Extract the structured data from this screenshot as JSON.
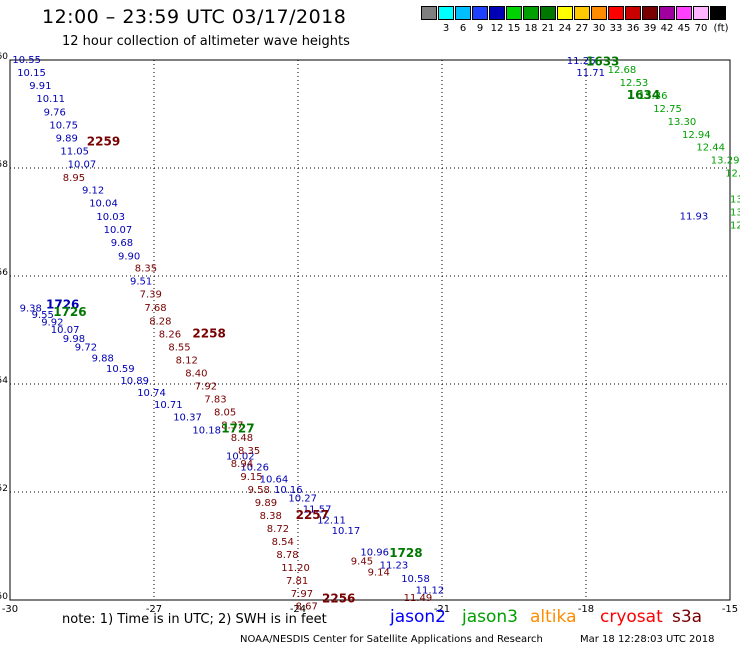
{
  "header": {
    "title": "12:00 – 23:59 UTC 03/17/2018",
    "subtitle": "12 hour collection of altimeter wave heights"
  },
  "legend": {
    "unit": "(ft)",
    "bins": [
      {
        "label": "",
        "color": "#7f7f7f"
      },
      {
        "label": "3",
        "color": "#00ffff"
      },
      {
        "label": "6",
        "color": "#00bfff"
      },
      {
        "label": "9",
        "color": "#1e40ff"
      },
      {
        "label": "12",
        "color": "#0000b4"
      },
      {
        "label": "15",
        "color": "#00d400"
      },
      {
        "label": "18",
        "color": "#00a000"
      },
      {
        "label": "21",
        "color": "#007800"
      },
      {
        "label": "24",
        "color": "#ffff00"
      },
      {
        "label": "27",
        "color": "#ffc800"
      },
      {
        "label": "30",
        "color": "#ff8c00"
      },
      {
        "label": "33",
        "color": "#ff0000"
      },
      {
        "label": "36",
        "color": "#c80000"
      },
      {
        "label": "39",
        "color": "#780000"
      },
      {
        "label": "42",
        "color": "#a000a0"
      },
      {
        "label": "45",
        "color": "#ff40ff"
      },
      {
        "label": "70",
        "color": "#ffb4ff"
      },
      {
        "label": "",
        "color": "#000000"
      }
    ]
  },
  "axes": {
    "x_ticks": [
      {
        "v": -30,
        "t": "-30"
      },
      {
        "v": -27,
        "t": "-27"
      },
      {
        "v": -24,
        "t": "-24"
      },
      {
        "v": -21,
        "t": "-21"
      },
      {
        "v": -18,
        "t": "-18"
      },
      {
        "v": -15,
        "t": "-15"
      }
    ],
    "y_ticks": [
      {
        "v": 50,
        "t": "50"
      },
      {
        "v": 52,
        "t": "52"
      },
      {
        "v": 54,
        "t": "54"
      },
      {
        "v": 56,
        "t": "56"
      },
      {
        "v": 58,
        "t": "58"
      },
      {
        "v": 60,
        "t": "60"
      }
    ],
    "xlim": [
      -30,
      -15
    ],
    "ylim": [
      50,
      60
    ]
  },
  "chart_data": {
    "type": "scatter",
    "series": [
      {
        "name": "jason2",
        "color": "#0000b4",
        "points": [
          {
            "lon": -29.95,
            "lat": 59.94,
            "t": "10.55"
          },
          {
            "lon": -29.85,
            "lat": 59.7,
            "t": "10.15"
          },
          {
            "lon": -29.6,
            "lat": 59.46,
            "t": "9.91"
          },
          {
            "lon": -29.45,
            "lat": 59.22,
            "t": "10.11"
          },
          {
            "lon": -29.3,
            "lat": 58.97,
            "t": "9.76"
          },
          {
            "lon": -29.18,
            "lat": 58.73,
            "t": "10.75"
          },
          {
            "lon": -29.05,
            "lat": 58.49,
            "t": "9.89"
          },
          {
            "lon": -28.95,
            "lat": 58.25,
            "t": "11.05"
          },
          {
            "lon": -28.8,
            "lat": 58.01,
            "t": "10.07"
          },
          {
            "lon": -28.5,
            "lat": 57.53,
            "t": "9.12"
          },
          {
            "lon": -28.35,
            "lat": 57.29,
            "t": "10.04"
          },
          {
            "lon": -28.2,
            "lat": 57.04,
            "t": "10.03"
          },
          {
            "lon": -28.05,
            "lat": 56.8,
            "t": "10.07"
          },
          {
            "lon": -27.9,
            "lat": 56.56,
            "t": "9.68"
          },
          {
            "lon": -27.75,
            "lat": 56.31,
            "t": "9.90"
          },
          {
            "lon": -27.5,
            "lat": 55.84,
            "t": "9.51"
          },
          {
            "lon": -29.8,
            "lat": 55.34,
            "t": "9.38"
          },
          {
            "lon": -29.55,
            "lat": 55.22,
            "t": "9.55"
          },
          {
            "lon": -29.35,
            "lat": 55.08,
            "t": "9.92"
          },
          {
            "lon": -29.15,
            "lat": 54.94,
            "t": "10.07"
          },
          {
            "lon": -28.9,
            "lat": 54.78,
            "t": "9.98"
          },
          {
            "lon": -28.65,
            "lat": 54.62,
            "t": "9.72"
          },
          {
            "lon": -28.3,
            "lat": 54.42,
            "t": "9.88"
          },
          {
            "lon": -28.0,
            "lat": 54.22,
            "t": "10.59"
          },
          {
            "lon": -27.7,
            "lat": 54.0,
            "t": "10.89"
          },
          {
            "lon": -27.35,
            "lat": 53.78,
            "t": "10.74"
          },
          {
            "lon": -27.0,
            "lat": 53.56,
            "t": "10.71"
          },
          {
            "lon": -26.6,
            "lat": 53.32,
            "t": "10.37"
          },
          {
            "lon": -26.2,
            "lat": 53.08,
            "t": "10.18"
          },
          {
            "lon": -25.5,
            "lat": 52.6,
            "t": "10.02"
          },
          {
            "lon": -25.2,
            "lat": 52.4,
            "t": "10.26"
          },
          {
            "lon": -24.8,
            "lat": 52.18,
            "t": "10.64"
          },
          {
            "lon": -24.5,
            "lat": 51.98,
            "t": "10.16"
          },
          {
            "lon": -24.2,
            "lat": 51.82,
            "t": "10.27"
          },
          {
            "lon": -23.9,
            "lat": 51.62,
            "t": "11.57"
          },
          {
            "lon": -23.6,
            "lat": 51.42,
            "t": "12.11"
          },
          {
            "lon": -23.3,
            "lat": 51.22,
            "t": "10.17"
          },
          {
            "lon": -22.7,
            "lat": 50.82,
            "t": "10.96"
          },
          {
            "lon": -22.3,
            "lat": 50.58,
            "t": "11.23"
          },
          {
            "lon": -21.85,
            "lat": 50.33,
            "t": "10.58"
          },
          {
            "lon": -21.55,
            "lat": 50.12,
            "t": "11.12"
          },
          {
            "lon": -18.4,
            "lat": 59.93,
            "t": "11.26"
          },
          {
            "lon": -18.2,
            "lat": 59.7,
            "t": "11.71"
          },
          {
            "lon": -16.05,
            "lat": 57.05,
            "t": "11.93"
          }
        ]
      },
      {
        "name": "jason3",
        "color": "#00a000",
        "points": [
          {
            "lon": -17.55,
            "lat": 59.76,
            "t": "12.68"
          },
          {
            "lon": -17.3,
            "lat": 59.52,
            "t": "12.53"
          },
          {
            "lon": -16.9,
            "lat": 59.28,
            "t": "13.36"
          },
          {
            "lon": -16.6,
            "lat": 59.04,
            "t": "12.75"
          },
          {
            "lon": -16.3,
            "lat": 58.8,
            "t": "13.30"
          },
          {
            "lon": -16.0,
            "lat": 58.56,
            "t": "12.94"
          },
          {
            "lon": -15.7,
            "lat": 58.32,
            "t": "12.44"
          },
          {
            "lon": -15.4,
            "lat": 58.08,
            "t": "13.29"
          },
          {
            "lon": -15.1,
            "lat": 57.84,
            "t": "12.75"
          },
          {
            "lon": -15.0,
            "lat": 57.36,
            "t": "13.07"
          },
          {
            "lon": -15.0,
            "lat": 57.12,
            "t": "13.28"
          },
          {
            "lon": -15.0,
            "lat": 56.88,
            "t": "12"
          }
        ]
      },
      {
        "name": "altika",
        "color": "#ff8c00",
        "points": []
      },
      {
        "name": "cryosat",
        "color": "#c80000",
        "points": []
      },
      {
        "name": "s3a",
        "color": "#780000",
        "points": [
          {
            "lon": -28.9,
            "lat": 57.76,
            "t": "8.95"
          },
          {
            "lon": -27.4,
            "lat": 56.08,
            "t": "8.35"
          },
          {
            "lon": -27.3,
            "lat": 55.6,
            "t": "7.39"
          },
          {
            "lon": -27.2,
            "lat": 55.35,
            "t": "7.68"
          },
          {
            "lon": -27.1,
            "lat": 55.1,
            "t": "8.28"
          },
          {
            "lon": -26.9,
            "lat": 54.86,
            "t": "8.26"
          },
          {
            "lon": -26.7,
            "lat": 54.62,
            "t": "8.55"
          },
          {
            "lon": -26.55,
            "lat": 54.38,
            "t": "8.12"
          },
          {
            "lon": -26.35,
            "lat": 54.14,
            "t": "8.40"
          },
          {
            "lon": -26.15,
            "lat": 53.9,
            "t": "7.92"
          },
          {
            "lon": -25.95,
            "lat": 53.66,
            "t": "7.83"
          },
          {
            "lon": -25.75,
            "lat": 53.42,
            "t": "8.05"
          },
          {
            "lon": -25.6,
            "lat": 53.18,
            "t": "8.37"
          },
          {
            "lon": -25.4,
            "lat": 52.94,
            "t": "8.48"
          },
          {
            "lon": -25.25,
            "lat": 52.7,
            "t": "8.35"
          },
          {
            "lon": -25.4,
            "lat": 52.46,
            "t": "8.94"
          },
          {
            "lon": -25.2,
            "lat": 52.22,
            "t": "9.15"
          },
          {
            "lon": -25.05,
            "lat": 51.98,
            "t": "9.58"
          },
          {
            "lon": -24.9,
            "lat": 51.74,
            "t": "9.89"
          },
          {
            "lon": -24.8,
            "lat": 51.5,
            "t": "8.38"
          },
          {
            "lon": -24.65,
            "lat": 51.26,
            "t": "8.72"
          },
          {
            "lon": -24.55,
            "lat": 51.02,
            "t": "8.54"
          },
          {
            "lon": -24.45,
            "lat": 50.78,
            "t": "8.78"
          },
          {
            "lon": -24.35,
            "lat": 50.54,
            "t": "11.20"
          },
          {
            "lon": -24.25,
            "lat": 50.3,
            "t": "7.81"
          },
          {
            "lon": -24.15,
            "lat": 50.06,
            "t": "7.97"
          },
          {
            "lon": -24.05,
            "lat": 49.82,
            "t": "8.67"
          },
          {
            "lon": -22.9,
            "lat": 50.66,
            "t": "9.45"
          },
          {
            "lon": -22.55,
            "lat": 50.45,
            "t": "9.14"
          },
          {
            "lon": -21.8,
            "lat": 49.98,
            "t": "11.49"
          }
        ]
      }
    ],
    "annotations": [
      {
        "t": "1633",
        "lon": -18.0,
        "lat": 59.9,
        "color": "#007800"
      },
      {
        "t": "1634",
        "lon": -17.15,
        "lat": 59.28,
        "color": "#007800"
      },
      {
        "t": "2259",
        "lon": -28.4,
        "lat": 58.42,
        "color": "#780000"
      },
      {
        "t": "1726",
        "lon": -29.25,
        "lat": 55.4,
        "color": "#0000b4"
      },
      {
        "t": "1726",
        "lon": -29.1,
        "lat": 55.26,
        "color": "#007800"
      },
      {
        "t": "2258",
        "lon": -26.2,
        "lat": 54.86,
        "color": "#780000"
      },
      {
        "t": "1727",
        "lon": -25.6,
        "lat": 53.1,
        "color": "#007800"
      },
      {
        "t": "2257",
        "lon": -24.05,
        "lat": 51.5,
        "color": "#780000"
      },
      {
        "t": "1728",
        "lon": -22.1,
        "lat": 50.8,
        "color": "#007800"
      },
      {
        "t": "2256",
        "lon": -23.5,
        "lat": 49.95,
        "color": "#780000"
      }
    ]
  },
  "footer": {
    "note": "note:  1) Time is in UTC;  2) SWH is in feet",
    "satellites": [
      {
        "name": "jason2",
        "color": "#0000ff"
      },
      {
        "name": "jason3",
        "color": "#00a000"
      },
      {
        "name": "altika",
        "color": "#ff8c00"
      },
      {
        "name": "cryosat",
        "color": "#ff0000"
      },
      {
        "name": "s3a",
        "color": "#780000"
      }
    ],
    "credit": "NOAA/NESDIS Center for Satellite Applications and Research",
    "timestamp": "Mar 18 12:28:03 UTC 2018"
  }
}
